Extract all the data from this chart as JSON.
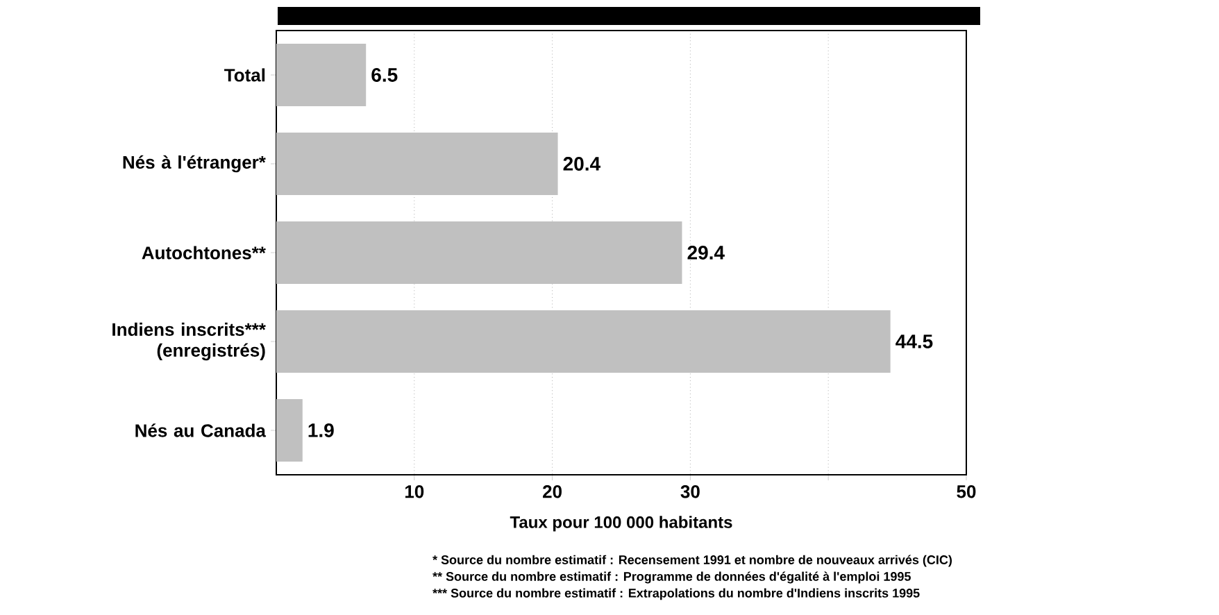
{
  "chart_data": {
    "type": "bar",
    "orientation": "horizontal",
    "categories": [
      "Total",
      "Nés à l'étranger*",
      "Autochtones**",
      "Indiens inscrits*** (enregistrés)",
      "Nés au Canada"
    ],
    "values": [
      6.5,
      20.4,
      29.4,
      44.5,
      1.9
    ],
    "color": "#c0c0c0",
    "data_labels": true,
    "xlim": [
      0,
      50
    ],
    "xticks": [
      10,
      20,
      30,
      {
        "value": 40,
        "label": null
      },
      50
    ],
    "grid": "x",
    "xlabel": "Taux pour  100 000 habitants",
    "annotations": [
      "*     Source du nombre estimatif : Recensement 1991 et nombre de nouveaux arrivés (CIC)",
      "**   Source du nombre estimatif : Programme de données d'égalité à l'emploi 1995",
      "***  Source du nombre estimatif : Extrapolations du nombre d'Indiens inscrits 1995"
    ]
  }
}
